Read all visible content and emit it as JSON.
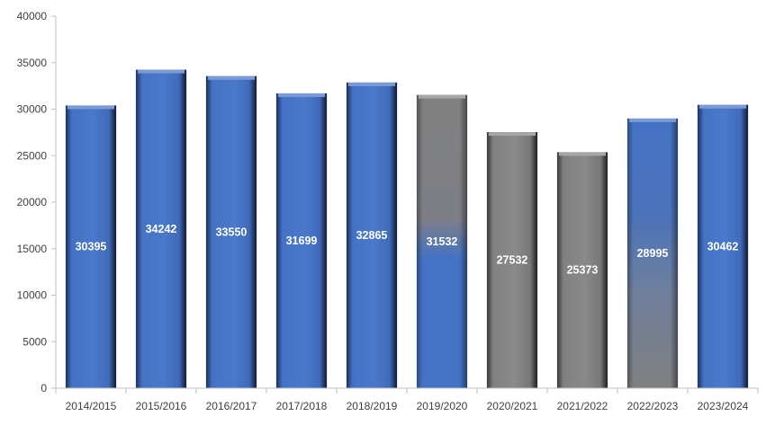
{
  "chart_data": {
    "type": "bar",
    "title": "",
    "xlabel": "",
    "ylabel": "",
    "ylim": [
      0,
      40000
    ],
    "yticks": [
      0,
      5000,
      10000,
      15000,
      20000,
      25000,
      30000,
      35000,
      40000
    ],
    "grid": false,
    "legend": "none",
    "categories": [
      "2014/2015",
      "2015/2016",
      "2016/2017",
      "2017/2018",
      "2018/2019",
      "2019/2020",
      "2020/2021",
      "2021/2022",
      "2022/2023",
      "2023/2024"
    ],
    "values": [
      30395,
      34242,
      33550,
      31699,
      32865,
      31532,
      27532,
      25373,
      28995,
      30462
    ],
    "data_labels": [
      "30395",
      "34242",
      "33550",
      "31699",
      "32865",
      "31532",
      "27532",
      "25373",
      "28995",
      "30462"
    ],
    "bar_styles": [
      "blue",
      "blue",
      "blue",
      "blue",
      "blue",
      "gray-to-blue",
      "gray",
      "gray",
      "blue-to-gray",
      "blue"
    ],
    "colors": {
      "blue": "#4472C4",
      "gray": "#808080",
      "axis": "#BFBFBF",
      "label": "#FFFFFF",
      "tick": "#404040"
    }
  }
}
